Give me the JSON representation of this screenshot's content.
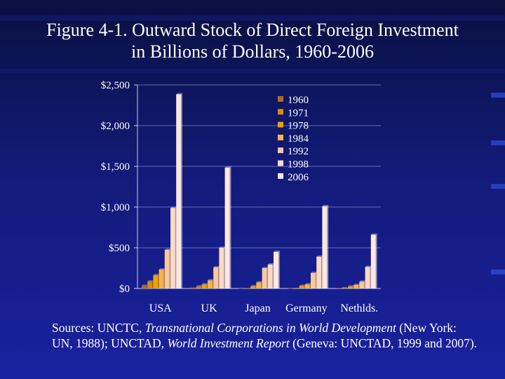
{
  "title": {
    "line1": "Figure 4-1. Outward Stock of Direct Foreign Investment",
    "line2": "in Billions of Dollars, 1960-2006"
  },
  "source": {
    "prefix": "Sources: UNCTC, ",
    "title1": "Transnational Corporations in World Development",
    "middle": " (New York: UN, 1988); UNCTAD, ",
    "title2": "World Investment Report",
    "suffix": " (Geneva: UNCTAD, 1999 and 2007)."
  },
  "chart_data": {
    "type": "bar",
    "categories": [
      "USA",
      "UK",
      "Japan",
      "Germany",
      "Nethlds."
    ],
    "yticks": [
      "$0",
      "$500",
      "$1,000",
      "$1,500",
      "$2,000",
      "$2,500"
    ],
    "ylim": [
      0,
      2500
    ],
    "grid": true,
    "legend_position": "top-right",
    "series": [
      {
        "name": "1960",
        "color": "#b56a1a",
        "values": [
          32,
          11,
          0.5,
          0.8,
          7
        ]
      },
      {
        "name": "1971",
        "color": "#d98a10",
        "values": [
          86,
          24,
          4,
          7,
          14
        ]
      },
      {
        "name": "1978",
        "color": "#f0a000",
        "values": [
          162,
          50,
          27,
          32,
          24
        ]
      },
      {
        "name": "1984",
        "color": "#f7b24a",
        "values": [
          233,
          100,
          75,
          50,
          44
        ]
      },
      {
        "name": "1992",
        "color": "#f9c99a",
        "values": [
          475,
          260,
          250,
          190,
          85
        ]
      },
      {
        "name": "1998",
        "color": "#fbd9c2",
        "values": [
          990,
          500,
          295,
          390,
          265
        ]
      },
      {
        "name": "2006",
        "color": "#fde8e0",
        "values": [
          2385,
          1485,
          450,
          1010,
          660
        ]
      }
    ]
  }
}
